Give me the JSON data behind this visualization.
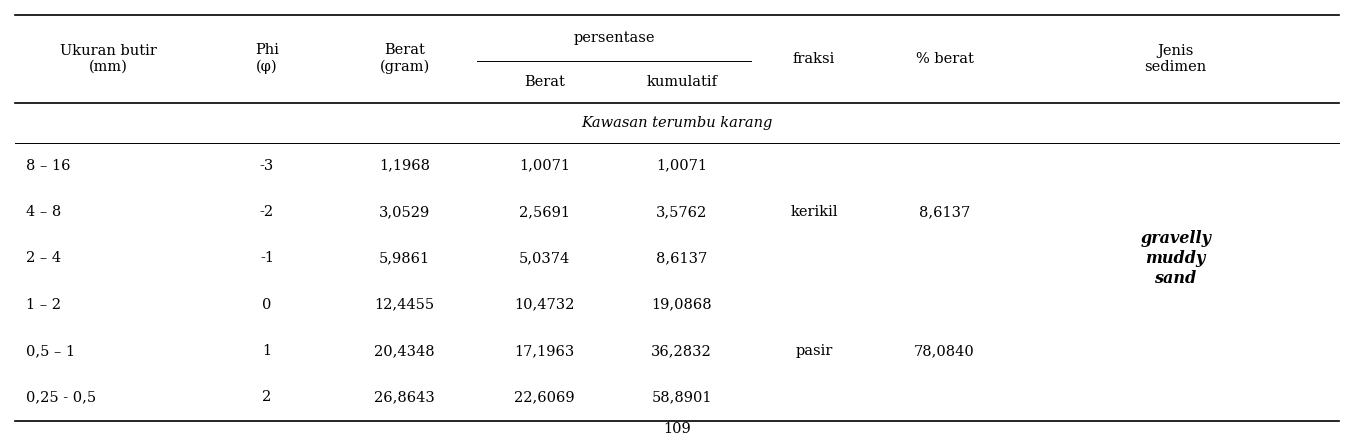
{
  "section_label": "Kawasan terumbu karang",
  "rows": [
    [
      "8 – 16",
      "-3",
      "1,1968",
      "1,0071",
      "1,0071",
      "",
      "",
      ""
    ],
    [
      "4 – 8",
      "-2",
      "3,0529",
      "2,5691",
      "3,5762",
      "kerikil",
      "8,6137",
      ""
    ],
    [
      "2 – 4",
      "-1",
      "5,9861",
      "5,0374",
      "8,6137",
      "",
      "",
      "gravelly"
    ],
    [
      "1 – 2",
      "0",
      "12,4455",
      "10,4732",
      "19,0868",
      "",
      "",
      "muddy"
    ],
    [
      "0,5 – 1",
      "1",
      "20,4348",
      "17,1963",
      "36,2832",
      "pasir",
      "78,0840",
      "sand"
    ],
    [
      "0,25 - 0,5",
      "2",
      "26,8643",
      "22,6069",
      "58,8901",
      "",
      "",
      ""
    ]
  ],
  "footer": "109",
  "background": "#ffffff",
  "font_size": 10.5
}
